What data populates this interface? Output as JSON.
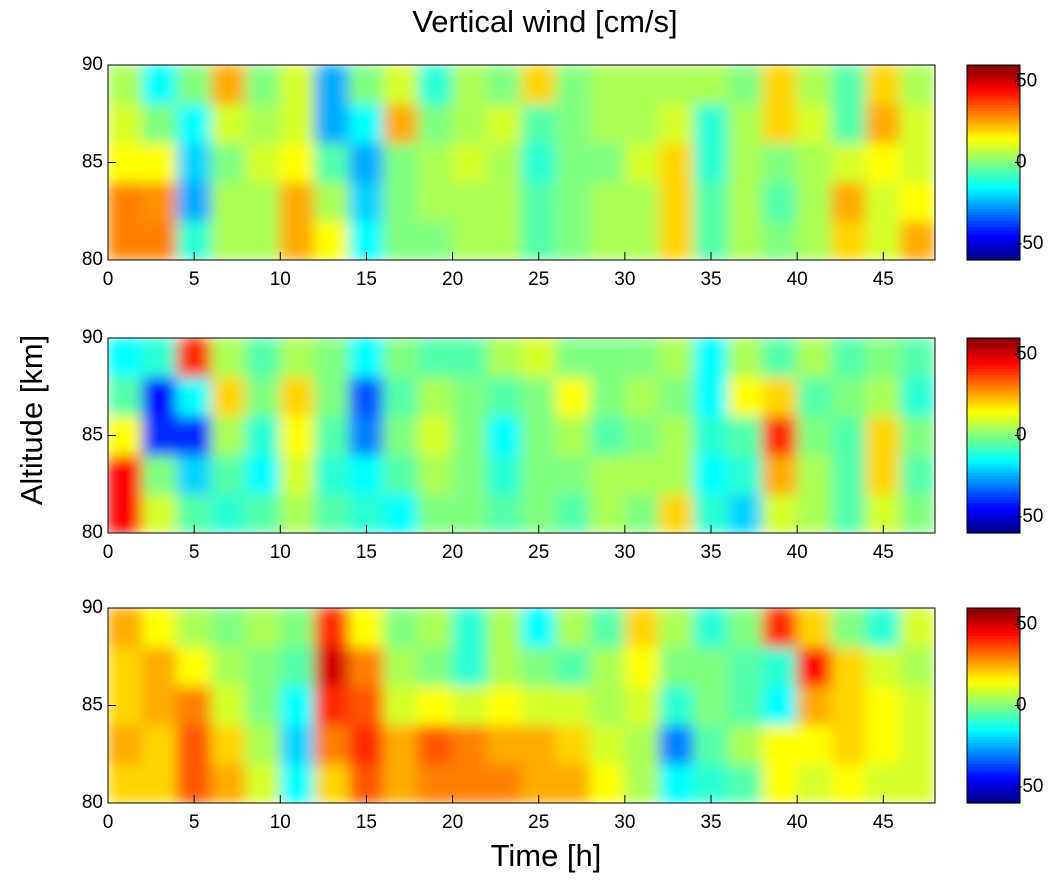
{
  "title": "Vertical wind [cm/s]",
  "x_label": "Time [h]",
  "y_label": "Altitude [km]",
  "chart_data": [
    {
      "type": "heatmap",
      "colormap": "jet",
      "clim": [
        -60,
        60
      ],
      "cticks": [
        -50,
        0,
        50
      ],
      "xlim": [
        0,
        48
      ],
      "xticks": [
        0,
        5,
        10,
        15,
        20,
        25,
        30,
        35,
        40,
        45
      ],
      "ylim": [
        80,
        90
      ],
      "yticks": [
        80,
        85,
        90
      ],
      "x": [
        1,
        3,
        5,
        7,
        9,
        11,
        13,
        15,
        17,
        19,
        21,
        23,
        25,
        27,
        29,
        31,
        33,
        35,
        37,
        39,
        41,
        43,
        45,
        47
      ],
      "y": [
        81,
        83,
        85,
        87,
        89
      ],
      "z": [
        [
          30,
          30,
          -10,
          5,
          5,
          25,
          15,
          -15,
          0,
          0,
          5,
          5,
          -5,
          0,
          5,
          5,
          20,
          -5,
          5,
          0,
          5,
          20,
          10,
          25
        ],
        [
          30,
          28,
          -25,
          5,
          5,
          25,
          5,
          -20,
          0,
          5,
          5,
          5,
          -5,
          0,
          5,
          5,
          20,
          -5,
          5,
          -5,
          5,
          25,
          10,
          15
        ],
        [
          15,
          15,
          -20,
          0,
          10,
          15,
          -5,
          -25,
          0,
          5,
          10,
          5,
          -10,
          0,
          0,
          10,
          20,
          -10,
          5,
          0,
          5,
          10,
          15,
          10
        ],
        [
          10,
          0,
          -15,
          10,
          5,
          10,
          -25,
          -15,
          25,
          0,
          5,
          10,
          -5,
          0,
          5,
          5,
          10,
          -10,
          5,
          20,
          10,
          -5,
          25,
          10
        ],
        [
          5,
          -15,
          0,
          25,
          0,
          10,
          -25,
          0,
          10,
          -10,
          5,
          0,
          20,
          0,
          5,
          5,
          5,
          5,
          0,
          20,
          5,
          -5,
          20,
          5
        ]
      ]
    },
    {
      "type": "heatmap",
      "colormap": "jet",
      "clim": [
        -60,
        60
      ],
      "cticks": [
        -50,
        0,
        50
      ],
      "xlim": [
        0,
        48
      ],
      "xticks": [
        0,
        5,
        10,
        15,
        20,
        25,
        30,
        35,
        40,
        45
      ],
      "ylim": [
        80,
        90
      ],
      "yticks": [
        80,
        85,
        90
      ],
      "x": [
        1,
        3,
        5,
        7,
        9,
        11,
        13,
        15,
        17,
        19,
        21,
        23,
        25,
        27,
        29,
        31,
        33,
        35,
        37,
        39,
        41,
        43,
        45,
        47
      ],
      "y": [
        81,
        83,
        85,
        87,
        89
      ],
      "z": [
        [
          45,
          10,
          -5,
          -10,
          -5,
          5,
          -5,
          -10,
          -15,
          0,
          0,
          -5,
          0,
          -5,
          5,
          0,
          20,
          -10,
          -20,
          10,
          5,
          -5,
          10,
          0
        ],
        [
          45,
          0,
          -20,
          -5,
          -15,
          10,
          -10,
          -15,
          -5,
          5,
          0,
          -10,
          0,
          0,
          5,
          5,
          5,
          -15,
          -10,
          25,
          5,
          -5,
          20,
          -5
        ],
        [
          15,
          -40,
          -40,
          5,
          -10,
          15,
          -5,
          -30,
          0,
          10,
          0,
          -15,
          0,
          5,
          -5,
          0,
          5,
          -10,
          -5,
          40,
          0,
          -5,
          20,
          0
        ],
        [
          -5,
          -45,
          -15,
          20,
          0,
          20,
          0,
          -35,
          -5,
          5,
          0,
          -5,
          0,
          15,
          0,
          5,
          0,
          -15,
          15,
          20,
          -5,
          0,
          5,
          -10
        ],
        [
          -15,
          -10,
          40,
          5,
          -5,
          5,
          0,
          -15,
          0,
          -5,
          -5,
          5,
          10,
          0,
          0,
          0,
          5,
          -15,
          5,
          -5,
          5,
          -5,
          0,
          -5
        ]
      ]
    },
    {
      "type": "heatmap",
      "colormap": "jet",
      "clim": [
        -60,
        60
      ],
      "cticks": [
        -50,
        0,
        50
      ],
      "xlim": [
        0,
        48
      ],
      "xticks": [
        0,
        5,
        10,
        15,
        20,
        25,
        30,
        35,
        40,
        45
      ],
      "ylim": [
        80,
        90
      ],
      "yticks": [
        80,
        85,
        90
      ],
      "x": [
        1,
        3,
        5,
        7,
        9,
        11,
        13,
        15,
        17,
        19,
        21,
        23,
        25,
        27,
        29,
        31,
        33,
        35,
        37,
        39,
        41,
        43,
        45,
        47
      ],
      "y": [
        81,
        83,
        85,
        87,
        89
      ],
      "z": [
        [
          20,
          20,
          35,
          25,
          10,
          -15,
          20,
          35,
          25,
          30,
          30,
          30,
          25,
          25,
          15,
          5,
          -15,
          -10,
          -5,
          15,
          10,
          15,
          10,
          10
        ],
        [
          25,
          20,
          35,
          20,
          5,
          -20,
          30,
          40,
          25,
          35,
          30,
          25,
          25,
          20,
          10,
          5,
          -30,
          -5,
          5,
          15,
          15,
          20,
          15,
          10
        ],
        [
          20,
          25,
          30,
          10,
          0,
          -15,
          40,
          35,
          10,
          15,
          10,
          15,
          10,
          10,
          5,
          10,
          -10,
          0,
          -5,
          -15,
          25,
          20,
          15,
          10
        ],
        [
          20,
          25,
          15,
          5,
          0,
          -5,
          50,
          30,
          5,
          0,
          -10,
          5,
          0,
          -5,
          5,
          15,
          0,
          0,
          -5,
          -10,
          45,
          20,
          10,
          5
        ],
        [
          25,
          15,
          5,
          0,
          5,
          0,
          40,
          15,
          0,
          5,
          -10,
          5,
          -15,
          5,
          -5,
          20,
          5,
          -10,
          0,
          40,
          20,
          0,
          -10,
          10
        ]
      ]
    }
  ]
}
